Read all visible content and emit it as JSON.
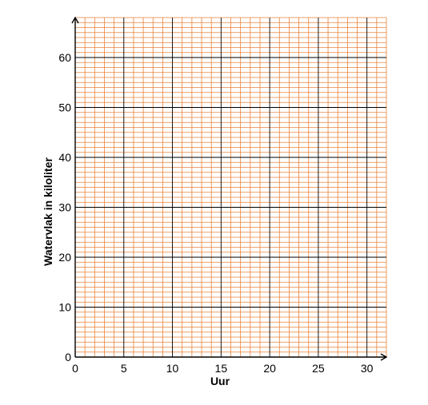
{
  "chart_data": {
    "type": "line",
    "title": "",
    "xlabel": "Uur",
    "ylabel": "Watervlak in kiloliter",
    "xlim": [
      0,
      32
    ],
    "ylim": [
      0,
      68
    ],
    "x_ticks": [
      "0",
      "5",
      "10",
      "15",
      "20",
      "25",
      "30"
    ],
    "y_ticks": [
      "0",
      "10",
      "20",
      "30",
      "40",
      "50",
      "60"
    ],
    "series": [],
    "grid": true,
    "grid_minor_step": 1,
    "grid_major_step": 5,
    "colors": {
      "minor_grid": "#e8823a",
      "major_grid": "#000000",
      "axis": "#000000"
    }
  }
}
